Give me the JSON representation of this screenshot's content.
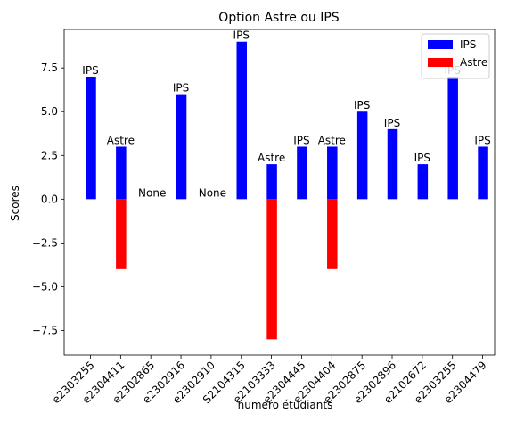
{
  "chart_data": {
    "type": "bar",
    "title": "Option Astre ou IPS",
    "xlabel": "numéro étudiants",
    "ylabel": "Scores",
    "ylim": [
      -8.9,
      9.7
    ],
    "yticks": [
      -7.5,
      -5.0,
      -2.5,
      0.0,
      2.5,
      5.0,
      7.5
    ],
    "ytick_labels": [
      "−7.5",
      "−5.0",
      "−2.5",
      "0.0",
      "2.5",
      "5.0",
      "7.5"
    ],
    "grid": false,
    "legend_position": "top-right",
    "categories": [
      "e2303255",
      "e2304411",
      "e2302865",
      "e2302916",
      "e2302910",
      "S2104315",
      "e2103333",
      "e2304445",
      "e2304404",
      "e2302875",
      "e2302896",
      "e2102672",
      "e2303255",
      "e2304479"
    ],
    "series": [
      {
        "name": "IPS",
        "color": "#0000ff",
        "values": [
          7,
          3,
          0,
          6,
          0,
          9,
          2,
          3,
          3,
          5,
          4,
          2,
          7,
          3
        ]
      },
      {
        "name": "Astre",
        "color": "#ff0000",
        "values": [
          0,
          -4,
          0,
          0,
          0,
          0,
          -8,
          0,
          -4,
          0,
          0,
          0,
          0,
          0
        ]
      }
    ],
    "bar_labels": [
      "IPS",
      "Astre",
      "None",
      "IPS",
      "None",
      "IPS",
      "Astre",
      "IPS",
      "Astre",
      "IPS",
      "IPS",
      "IPS",
      "IPS",
      "IPS"
    ]
  }
}
